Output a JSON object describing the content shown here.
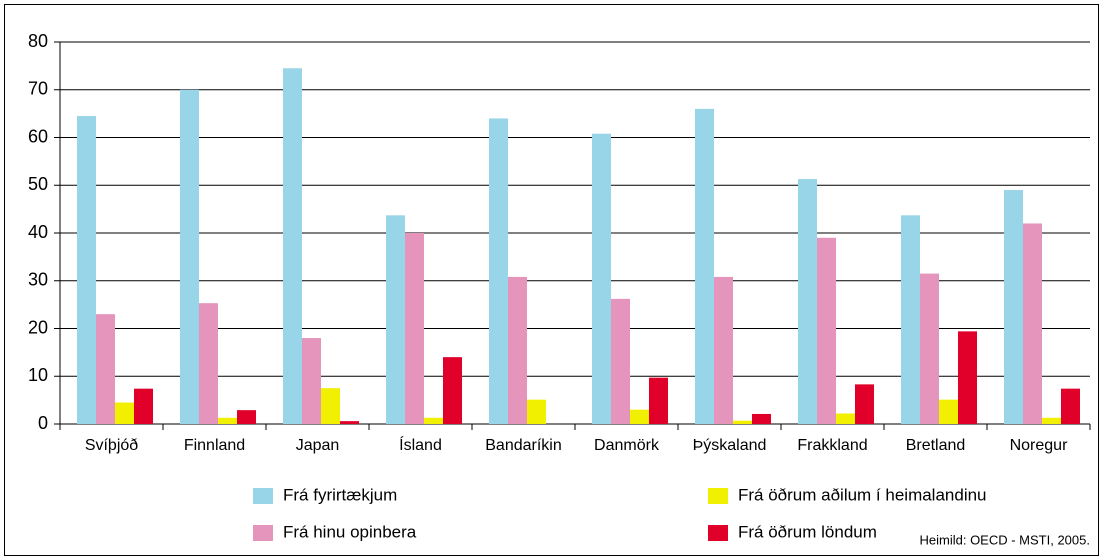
{
  "chart_data": {
    "type": "bar",
    "categories": [
      "Svíþjóð",
      "Finnland",
      "Japan",
      "Ísland",
      "Bandaríkin",
      "Danmörk",
      "Þýskaland",
      "Frakkland",
      "Bretland",
      "Noregur"
    ],
    "series": [
      {
        "name": "Frá fyrirtækjum",
        "color": "#99d5e9",
        "values": [
          64.5,
          70,
          74.5,
          43.7,
          64,
          60.8,
          66,
          51.3,
          43.7,
          49
        ]
      },
      {
        "name": "Frá hinu opinbera",
        "color": "#e594bb",
        "values": [
          23,
          25.3,
          18,
          40,
          30.8,
          26.2,
          30.8,
          39,
          31.5,
          42
        ]
      },
      {
        "name": "Frá öðrum aðilum í heimalandinu",
        "color": "#f0f000",
        "values": [
          4.5,
          1.3,
          7.5,
          1.3,
          5.1,
          3,
          0.7,
          2.2,
          5.1,
          1.3
        ]
      },
      {
        "name": "Frá öðrum löndum",
        "color": "#e0002a",
        "values": [
          7.4,
          2.9,
          0.6,
          14,
          null,
          9.7,
          2.1,
          8.3,
          19.4,
          7.4
        ]
      }
    ],
    "ylim": [
      0,
      80
    ],
    "yticks": [
      0,
      10,
      20,
      30,
      40,
      50,
      60,
      70,
      80
    ],
    "grid": true,
    "source": "Heimild: OECD - MSTI, 2005."
  }
}
